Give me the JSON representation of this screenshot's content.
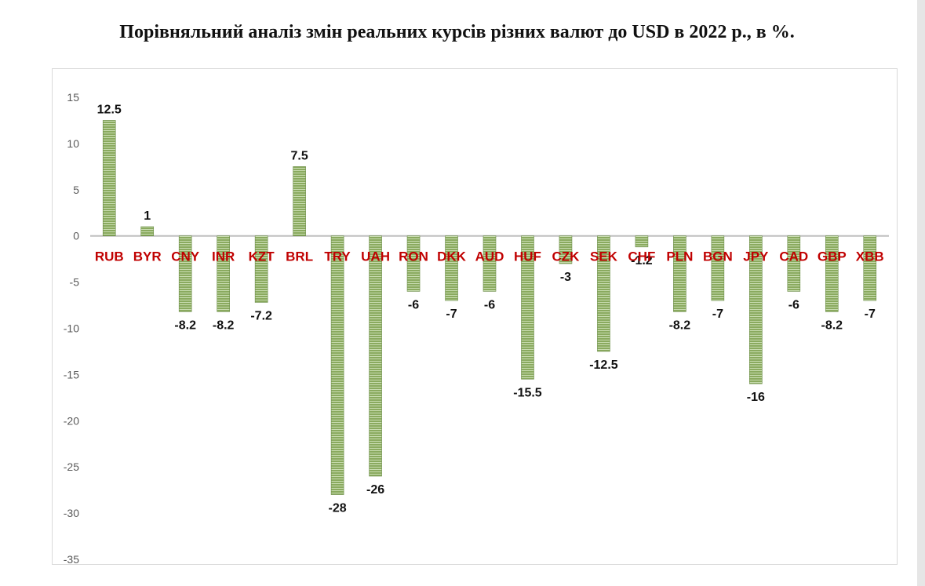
{
  "title": "Порівняльний аналіз змін реальних курсів різних валют до USD в 2022 р., в %.",
  "colors": {
    "bar_fill": "#8aaa5f",
    "bar_stripe": "#c8dcb0",
    "bar_edge": "#6a8c46",
    "category_label": "#c00000",
    "data_label": "#111111",
    "axis_tick": "#595959",
    "zero_line": "#bfbfbf"
  },
  "chart_data": {
    "type": "bar",
    "categories": [
      "RUB",
      "BYR",
      "CNY",
      "INR",
      "KZT",
      "BRL",
      "TRY",
      "UAH",
      "RON",
      "DKK",
      "AUD",
      "HUF",
      "CZK",
      "SEK",
      "CHF",
      "PLN",
      "BGN",
      "JPY",
      "CAD",
      "GBP",
      "XBB"
    ],
    "values": [
      12.5,
      1,
      -8.2,
      -8.2,
      -7.2,
      7.5,
      -28,
      -26,
      -6,
      -7,
      -6,
      -15.5,
      -3,
      -12.5,
      -1.2,
      -8.2,
      -7,
      -16,
      -6,
      -8.2,
      -7
    ],
    "data_labels": [
      "12.5",
      "1",
      "-8.2",
      "-8.2",
      "-7.2",
      "7.5",
      "-28",
      "-26",
      "-6",
      "-7",
      "-6",
      "-15.5",
      "-3",
      "-12.5",
      "-1.2",
      "-8.2",
      "-7",
      "-16",
      "-6",
      "-8.2",
      "-7"
    ],
    "ylim": [
      -35,
      15
    ],
    "yticks": [
      15,
      10,
      5,
      0,
      -5,
      -10,
      -15,
      -20,
      -25,
      -30,
      -35
    ],
    "grid": false,
    "legend": "none",
    "xlabel": "",
    "ylabel": ""
  }
}
